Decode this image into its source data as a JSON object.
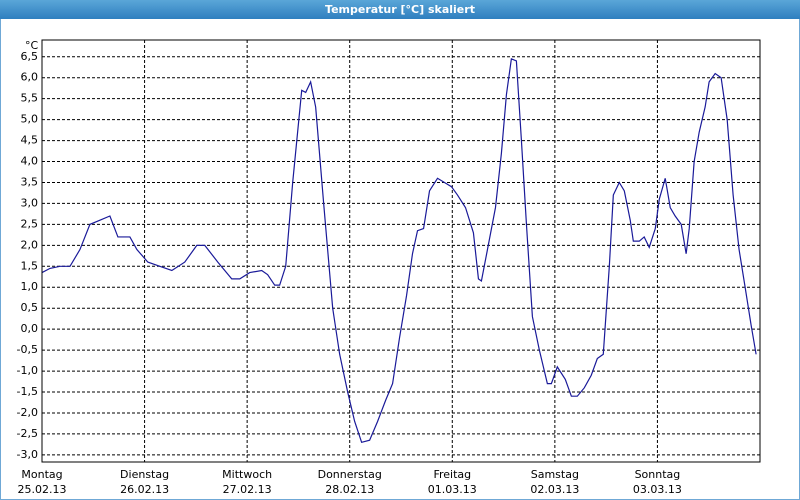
{
  "chart_data": {
    "type": "line",
    "title": "Temperatur [°C] skaliert",
    "y_unit": "°C",
    "color": "#1a1a99",
    "grid": true,
    "xlim": [
      0,
      7
    ],
    "ylim": [
      -3.17,
      6.9
    ],
    "xticks": [
      {
        "value": 0,
        "label": [
          "Montag",
          "25.02.13"
        ]
      },
      {
        "value": 1,
        "label": [
          "Dienstag",
          "26.02.13"
        ]
      },
      {
        "value": 2,
        "label": [
          "Mittwoch",
          "27.02.13"
        ]
      },
      {
        "value": 3,
        "label": [
          "Donnerstag",
          "28.02.13"
        ]
      },
      {
        "value": 4,
        "label": [
          "Freitag",
          "01.03.13"
        ]
      },
      {
        "value": 5,
        "label": [
          "Samstag",
          "02.03.13"
        ]
      },
      {
        "value": 6,
        "label": [
          "Sonntag",
          "03.03.13"
        ]
      }
    ],
    "yticks": [
      {
        "value": -3.0,
        "label": "-3,0"
      },
      {
        "value": -2.5,
        "label": "-2,5"
      },
      {
        "value": -2.0,
        "label": "-2,0"
      },
      {
        "value": -1.5,
        "label": "-1,5"
      },
      {
        "value": -1.0,
        "label": "-1,0"
      },
      {
        "value": -0.5,
        "label": "-0,5"
      },
      {
        "value": 0.0,
        "label": "0,0"
      },
      {
        "value": 0.5,
        "label": "0,5"
      },
      {
        "value": 1.0,
        "label": "1,0"
      },
      {
        "value": 1.5,
        "label": "1,5"
      },
      {
        "value": 2.0,
        "label": "2,0"
      },
      {
        "value": 2.5,
        "label": "2,5"
      },
      {
        "value": 3.0,
        "label": "3,0"
      },
      {
        "value": 3.5,
        "label": "3,5"
      },
      {
        "value": 4.0,
        "label": "4,0"
      },
      {
        "value": 4.5,
        "label": "4,5"
      },
      {
        "value": 5.0,
        "label": "5,0"
      },
      {
        "value": 5.5,
        "label": "5,5"
      },
      {
        "value": 6.0,
        "label": "6,0"
      },
      {
        "value": 6.5,
        "label": "6,5"
      }
    ],
    "x": [
      0,
      0.078,
      0.175,
      0.273,
      0.37,
      0.467,
      0.565,
      0.662,
      0.74,
      0.857,
      0.925,
      1.032,
      1.149,
      1.266,
      1.392,
      1.509,
      1.587,
      1.714,
      1.85,
      1.928,
      2.025,
      2.142,
      2.2,
      2.269,
      2.317,
      2.376,
      2.444,
      2.532,
      2.571,
      2.619,
      2.668,
      2.746,
      2.834,
      2.902,
      2.98,
      3.048,
      3.116,
      3.194,
      3.272,
      3.35,
      3.418,
      3.486,
      3.554,
      3.612,
      3.661,
      3.72,
      3.778,
      3.856,
      3.924,
      3.992,
      4.051,
      4.129,
      4.206,
      4.255,
      4.284,
      4.343,
      4.421,
      4.479,
      4.528,
      4.576,
      4.625,
      4.674,
      4.723,
      4.781,
      4.849,
      4.927,
      4.966,
      5.024,
      5.102,
      5.161,
      5.219,
      5.287,
      5.355,
      5.414,
      5.472,
      5.531,
      5.57,
      5.628,
      5.677,
      5.735,
      5.765,
      5.823,
      5.871,
      5.92,
      5.979,
      6.018,
      6.076,
      6.125,
      6.173,
      6.232,
      6.28,
      6.31,
      6.358,
      6.407,
      6.465,
      6.504,
      6.563,
      6.621,
      6.68,
      6.738,
      6.796,
      6.855,
      6.913,
      6.962
    ],
    "values": [
      1.35,
      1.45,
      1.5,
      1.5,
      1.9,
      2.5,
      2.6,
      2.7,
      2.2,
      2.2,
      1.9,
      1.6,
      1.5,
      1.4,
      1.6,
      2.0,
      2.0,
      1.6,
      1.2,
      1.2,
      1.35,
      1.4,
      1.3,
      1.05,
      1.05,
      1.5,
      3.5,
      5.7,
      5.65,
      5.9,
      5.3,
      3.0,
      0.5,
      -0.6,
      -1.5,
      -2.2,
      -2.7,
      -2.65,
      -2.2,
      -1.7,
      -1.3,
      -0.2,
      0.8,
      1.8,
      2.35,
      2.4,
      3.3,
      3.6,
      3.5,
      3.4,
      3.2,
      2.9,
      2.3,
      1.2,
      1.15,
      1.9,
      2.9,
      4.2,
      5.6,
      6.45,
      6.4,
      4.5,
      2.5,
      0.3,
      -0.5,
      -1.3,
      -1.3,
      -0.9,
      -1.2,
      -1.6,
      -1.6,
      -1.4,
      -1.1,
      -0.7,
      -0.6,
      1.5,
      3.2,
      3.5,
      3.3,
      2.6,
      2.1,
      2.1,
      2.2,
      1.95,
      2.4,
      3.1,
      3.6,
      2.9,
      2.7,
      2.5,
      1.8,
      2.4,
      4.0,
      4.7,
      5.3,
      5.9,
      6.1,
      6.0,
      5.0,
      3.2,
      1.9,
      1.0,
      0.1,
      -0.6
    ]
  }
}
